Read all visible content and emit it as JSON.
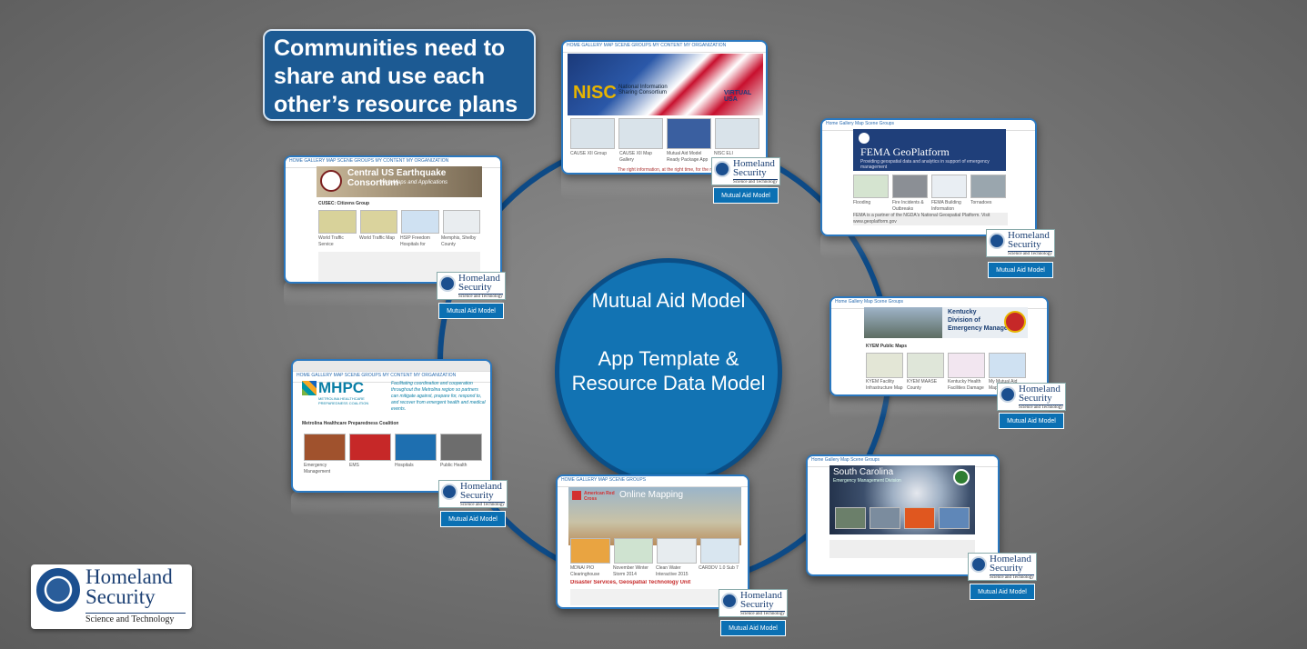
{
  "callout": {
    "text": "Communities need to share and use each other’s resource plans"
  },
  "hub": {
    "line1": "Mutual Aid Model",
    "line2": "App Template & Resource Data Model"
  },
  "badge": {
    "word1": "Homeland",
    "word2": "Security",
    "word3": "Science and Technology",
    "button_label": "Mutual Aid Model"
  },
  "colors": {
    "ring": "#0d4a86",
    "hub": "#1273b3",
    "callout": "#1c5a93",
    "button": "#0b70b3"
  },
  "cards": {
    "nisc": {
      "nav": "HOME  GALLERY  MAP  SCENE  GROUPS  MY CONTENT  MY ORGANIZATION",
      "banner_title": "NISC",
      "banner_sub": "National Information Sharing Consortium",
      "banner_right": "VIRTUAL USA",
      "thumbs": [
        "CAUSE XII Group",
        "CAUSE XII Map Gallery",
        "Mutual Aid Model Ready Package App",
        "NISC ELI"
      ],
      "footer": "The right information, at the right time, for the right people"
    },
    "fema": {
      "nav": "Home  Gallery  Map  Scene  Groups",
      "title": "FEMA GeoPlatform",
      "subtitle": "Providing geospatial data and analytics in support of emergency management",
      "thumbs": [
        "Flooding",
        "Fire Incidents & Outbreaks",
        "FEMA Building Information",
        "Tornadoes"
      ],
      "footer": "FEMA is a partner of the NGDA's National Geospatial Platform. Visit www.geoplatform.gov"
    },
    "ky": {
      "nav": "Home  Gallery  Map  Scene  Groups",
      "title_line1": "Kentucky",
      "title_line2": "Division of",
      "title_line3": "Emergency Management",
      "section": "KYEM Public Maps",
      "thumbs": [
        "KYEM Facility Infrastructure Map",
        "KYEM MAASE County Infrastructure Map",
        "Kentucky Health Facilities Damage Assessment - WB",
        "My Mutual Aid Map"
      ]
    },
    "sc": {
      "nav": "Home  Gallery  Map  Scene  Groups",
      "title": "South Carolina",
      "subtitle": "Emergency Management Division"
    },
    "redcross": {
      "nav": "HOME  GALLERY  MAP  SCENE  GROUPS",
      "brand": "American Red Cross",
      "title": "Online Mapping",
      "thumbs": [
        "MDNA/ PIO Clearinghouse",
        "November Winter Storm 2014",
        "Clean Water Interactive 2015",
        "CARDDV 1.0 Sub 7"
      ],
      "section": "Disaster Services, Geospatial Technology Unit"
    },
    "mhpc": {
      "nav": "HOME  GALLERY  MAP  SCENE  GROUPS  MY CONTENT  MY ORGANIZATION",
      "brand": "MHPC",
      "brand_sub": "METROLINA HEALTHCARE PREPAREDNESS COALITION",
      "tagline": "Facilitating coordination and cooperation throughout the Metrolina region so partners can mitigate against, prepare for, respond to, and recover from emergent health and medical events.",
      "section": "Metrolina Healthcare Preparedness Coalition",
      "thumbs": [
        "Emergency Management",
        "EMS",
        "Hospitals",
        "Public Health"
      ]
    },
    "cusec": {
      "nav": "HOME  GALLERY  MAP  SCENE  GROUPS  MY CONTENT  MY ORGANIZATION",
      "title": "Central US Earthquake Consortium",
      "subtitle": "Web Maps and Applications",
      "section": "CUSEC: Citizens Group",
      "thumbs": [
        "World Traffic Service",
        "World Traffic Map",
        "HSIP Freedom Hospitals for HSEEP Exercises",
        "Memphis, Shelby County Infrastructure Impact Model"
      ]
    }
  }
}
